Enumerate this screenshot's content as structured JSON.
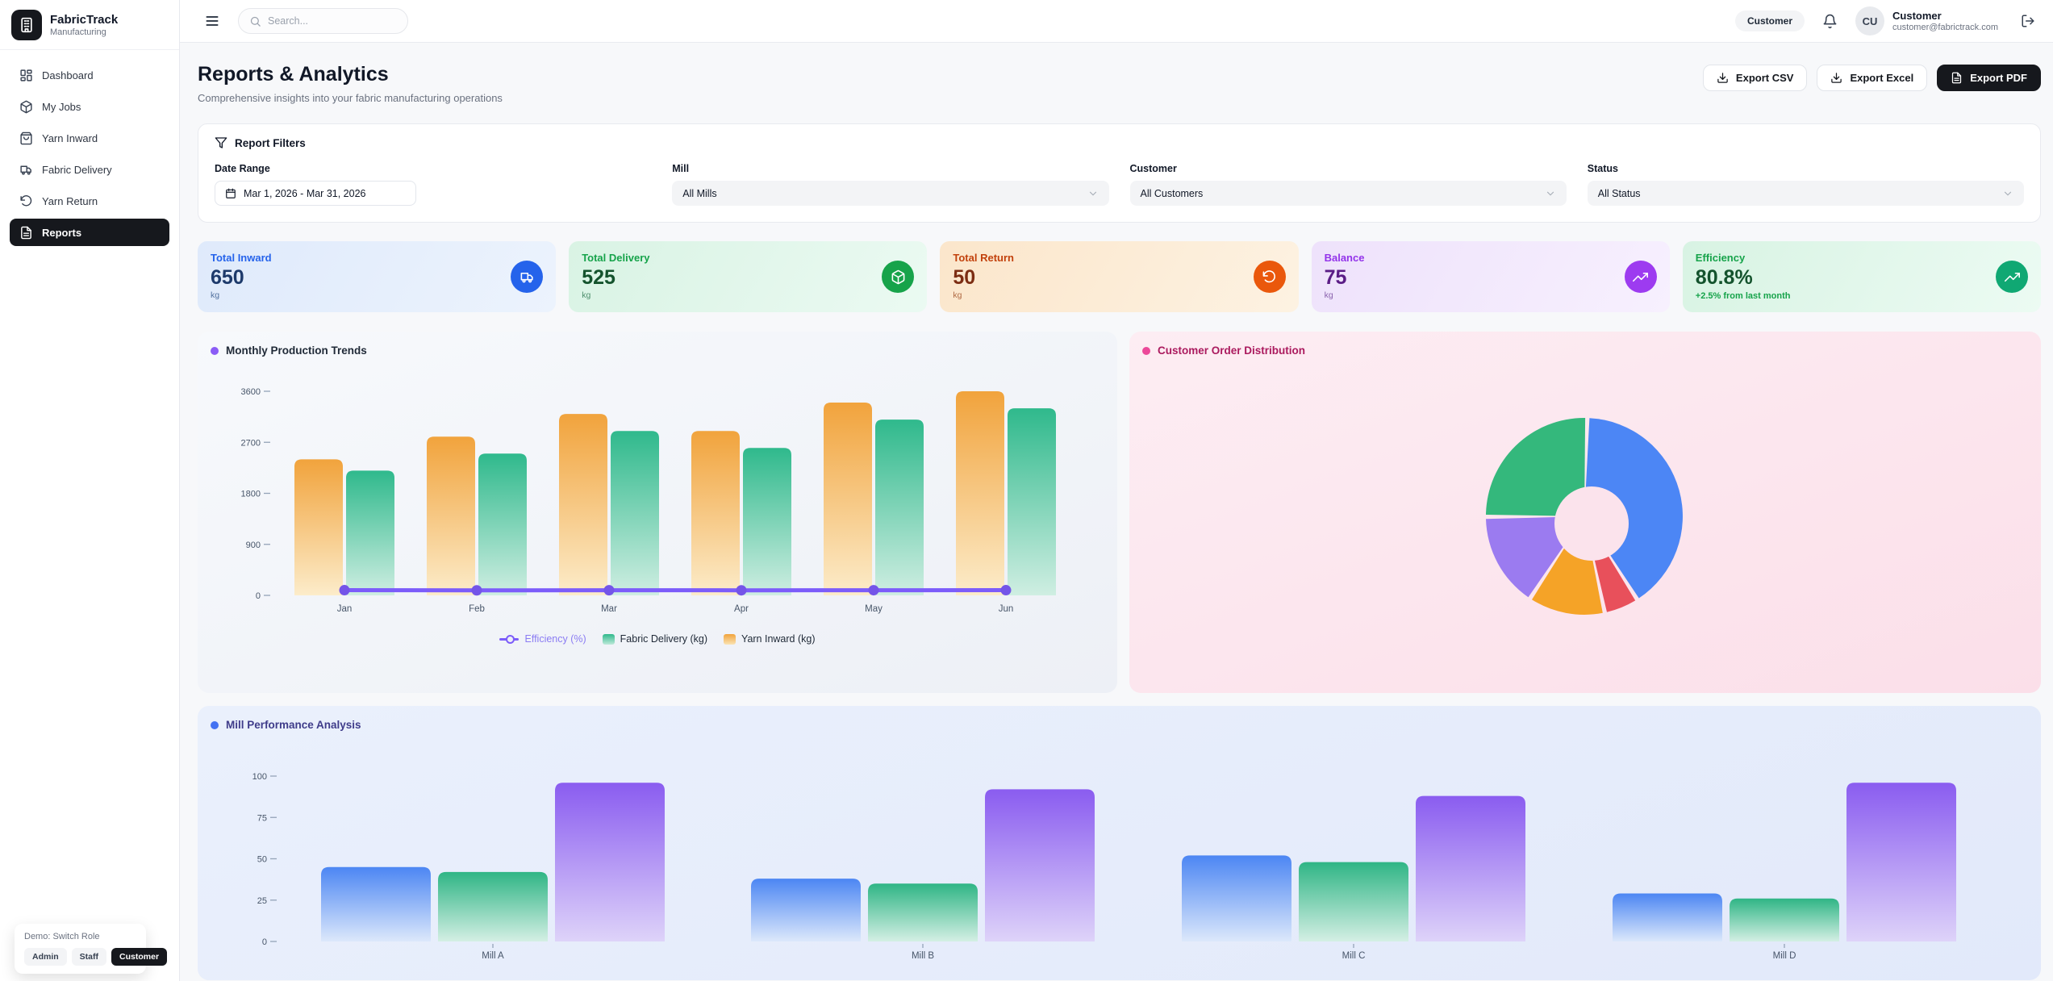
{
  "app": {
    "name": "FabricTrack",
    "tagline": "Manufacturing"
  },
  "topbar": {
    "search_placeholder": "Search...",
    "role_badge": "Customer",
    "user": {
      "initials": "CU",
      "name": "Customer",
      "email": "customer@fabrictrack.com"
    }
  },
  "sidebar": {
    "items": [
      {
        "label": "Dashboard",
        "icon": "dashboard-icon",
        "active": false
      },
      {
        "label": "My Jobs",
        "icon": "package-icon",
        "active": false
      },
      {
        "label": "Yarn Inward",
        "icon": "shopping-bag-icon",
        "active": false
      },
      {
        "label": "Fabric Delivery",
        "icon": "truck-icon",
        "active": false
      },
      {
        "label": "Yarn Return",
        "icon": "rotate-ccw-icon",
        "active": false
      },
      {
        "label": "Reports",
        "icon": "file-text-icon",
        "active": true
      }
    ]
  },
  "page": {
    "title": "Reports & Analytics",
    "subtitle": "Comprehensive insights into your fabric manufacturing operations",
    "export_csv": "Export CSV",
    "export_excel": "Export Excel",
    "export_pdf": "Export PDF"
  },
  "filters": {
    "title": "Report Filters",
    "date_label": "Date Range",
    "date_value": "Mar 1, 2026 - Mar 31, 2026",
    "mill_label": "Mill",
    "mill_value": "All Mills",
    "customer_label": "Customer",
    "customer_value": "All Customers",
    "status_label": "Status",
    "status_value": "All Status"
  },
  "stats": [
    {
      "label": "Total Inward",
      "value": "650",
      "unit": "kg",
      "icon": "truck-icon",
      "accent": "#2563eb"
    },
    {
      "label": "Total Delivery",
      "value": "525",
      "unit": "kg",
      "icon": "package-icon",
      "accent": "#17a34a"
    },
    {
      "label": "Total Return",
      "value": "50",
      "unit": "kg",
      "icon": "rotate-ccw-icon",
      "accent": "#ea580c"
    },
    {
      "label": "Balance",
      "value": "75",
      "unit": "kg",
      "icon": "trending-up-icon",
      "accent": "#9d3bf0"
    },
    {
      "label": "Efficiency",
      "value": "80.8%",
      "sub": "+2.5% from last month",
      "icon": "trending-up-icon",
      "accent": "#10a873"
    }
  ],
  "charts": {
    "monthly_title": "Monthly Production Trends",
    "pie_title": "Customer Order Distribution",
    "mill_title": "Mill Performance Analysis",
    "legend": {
      "efficiency": "Efficiency (%)",
      "delivery": "Fabric Delivery (kg)",
      "inward": "Yarn Inward (kg)"
    }
  },
  "chart_data": [
    {
      "type": "bar",
      "title": "Monthly Production Trends",
      "categories": [
        "Jan",
        "Feb",
        "Mar",
        "Apr",
        "May",
        "Jun"
      ],
      "series": [
        {
          "name": "Yarn Inward (kg)",
          "kind": "bar",
          "color": "#f1a33c",
          "values": [
            2400,
            2800,
            3200,
            2900,
            3400,
            3600
          ]
        },
        {
          "name": "Fabric Delivery (kg)",
          "kind": "bar",
          "color": "#2fb98c",
          "values": [
            2200,
            2500,
            2900,
            2600,
            3100,
            3300
          ]
        },
        {
          "name": "Efficiency (%)",
          "kind": "line",
          "color": "#7c5cfa",
          "values": [
            91.7,
            89.3,
            90.6,
            89.7,
            91.2,
            91.7
          ]
        }
      ],
      "ylim": [
        0,
        3600
      ],
      "yticks": [
        0,
        900,
        1800,
        2700,
        3600
      ],
      "legend_position": "bottom",
      "grid": false
    },
    {
      "type": "pie",
      "title": "Customer Order Distribution",
      "segments": [
        {
          "color": "#4c86f5",
          "value": 40
        },
        {
          "color": "#e8505b",
          "value": 5
        },
        {
          "color": "#f5a327",
          "value": 12
        },
        {
          "color": "#9b7bf0",
          "value": 15
        },
        {
          "color": "#34b87c",
          "value": 25
        }
      ],
      "donut": true,
      "labels_visible": false
    },
    {
      "type": "bar",
      "title": "Mill Performance Analysis",
      "categories": [
        "Mill A",
        "Mill B",
        "Mill C",
        "Mill D"
      ],
      "series": [
        {
          "name": "blue-series",
          "color": "#4c86f3",
          "values": [
            45,
            38,
            52,
            29
          ]
        },
        {
          "name": "green-series",
          "color": "#2fb585",
          "values": [
            42,
            35,
            48,
            26
          ]
        },
        {
          "name": "purple-series",
          "color": "#8a5cf0",
          "values": [
            96,
            92,
            88,
            96
          ]
        }
      ],
      "ylim": [
        0,
        100
      ],
      "yticks": [
        0,
        25,
        50,
        75,
        100
      ],
      "grid": false
    }
  ],
  "demo": {
    "title": "Demo: Switch Role",
    "roles": [
      "Admin",
      "Staff",
      "Customer"
    ],
    "active_role": "Customer"
  }
}
